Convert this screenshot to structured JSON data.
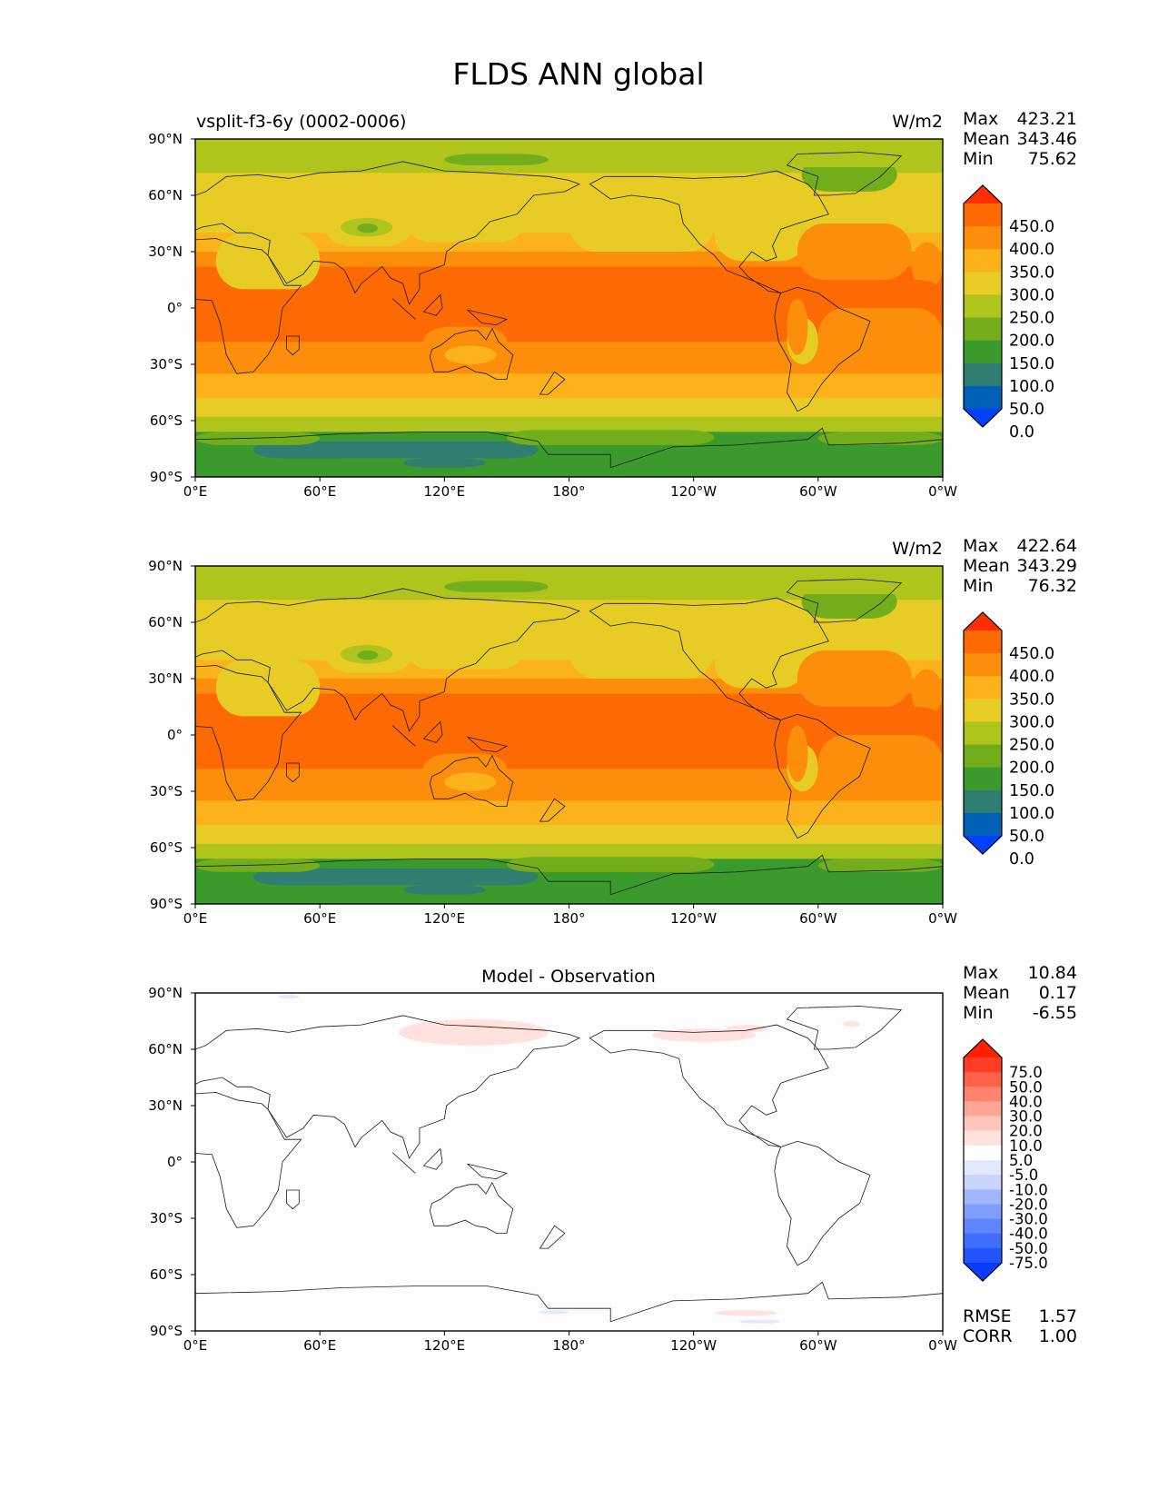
{
  "title": "FLDS ANN global",
  "colors": {
    "abs_levels": [
      "#0040ff",
      "#0060b8",
      "#2f7e72",
      "#3a9a2c",
      "#72ad1c",
      "#afc41d",
      "#e6cc25",
      "#fbb21b",
      "#fd8e0c",
      "#fd6a03",
      "#ff2f00"
    ],
    "diff_levels": [
      "#0a3cff",
      "#2255ff",
      "#3f6dff",
      "#5f86ff",
      "#7f9cff",
      "#a2b6ff",
      "#c9d4ff",
      "#e3e8ff",
      "#ffffff",
      "#ffe2dd",
      "#ffc6bb",
      "#ffa697",
      "#ff8470",
      "#ff6048",
      "#ff3c24",
      "#ff2000"
    ],
    "coast": "#1a1a1a"
  },
  "chart_data": [
    {
      "type": "heatmap",
      "title_left": "vsplit-f3-6y (0002-0006)",
      "title_right": "W/m2",
      "stats": [
        {
          "label": "Max",
          "value": "423.21"
        },
        {
          "label": "Mean",
          "value": "343.46"
        },
        {
          "label": "Min",
          "value": "75.62"
        }
      ],
      "xticks": [
        "0°E",
        "60°E",
        "120°E",
        "180°",
        "120°W",
        "60°W",
        "0°W"
      ],
      "yticks": [
        "90°N",
        "60°N",
        "30°N",
        "0°",
        "30°S",
        "60°S",
        "90°S"
      ],
      "xlim": [
        0,
        360
      ],
      "ylim": [
        -90,
        90
      ],
      "colorbar": {
        "labels": [
          "450.0",
          "400.0",
          "350.0",
          "300.0",
          "250.0",
          "200.0",
          "150.0",
          "100.0",
          "50.0",
          "0.0"
        ],
        "extend": "both"
      }
    },
    {
      "type": "heatmap",
      "title_right": "W/m2",
      "stats": [
        {
          "label": "Max",
          "value": "422.64"
        },
        {
          "label": "Mean",
          "value": "343.29"
        },
        {
          "label": "Min",
          "value": "76.32"
        }
      ],
      "xticks": [
        "0°E",
        "60°E",
        "120°E",
        "180°",
        "120°W",
        "60°W",
        "0°W"
      ],
      "yticks": [
        "90°N",
        "60°N",
        "30°N",
        "0°",
        "30°S",
        "60°S",
        "90°S"
      ],
      "xlim": [
        0,
        360
      ],
      "ylim": [
        -90,
        90
      ],
      "colorbar": {
        "labels": [
          "450.0",
          "400.0",
          "350.0",
          "300.0",
          "250.0",
          "200.0",
          "150.0",
          "100.0",
          "50.0",
          "0.0"
        ],
        "extend": "both"
      }
    },
    {
      "type": "heatmap",
      "title_center": "Model - Observation",
      "stats": [
        {
          "label": "Max",
          "value": "10.84"
        },
        {
          "label": "Mean",
          "value": "0.17"
        },
        {
          "label": "Min",
          "value": "-6.55"
        }
      ],
      "metrics": [
        {
          "label": "RMSE",
          "value": "1.57"
        },
        {
          "label": "CORR",
          "value": "1.00"
        }
      ],
      "xticks": [
        "0°E",
        "60°E",
        "120°E",
        "180°",
        "120°W",
        "60°W",
        "0°W"
      ],
      "yticks": [
        "90°N",
        "60°N",
        "30°N",
        "0°",
        "30°S",
        "60°S",
        "90°S"
      ],
      "xlim": [
        0,
        360
      ],
      "ylim": [
        -90,
        90
      ],
      "colorbar": {
        "labels": [
          "75.0",
          "50.0",
          "40.0",
          "30.0",
          "20.0",
          "10.0",
          "5.0",
          "-5.0",
          "-10.0",
          "-20.0",
          "-30.0",
          "-40.0",
          "-50.0",
          "-75.0"
        ],
        "extend": "both"
      }
    }
  ]
}
